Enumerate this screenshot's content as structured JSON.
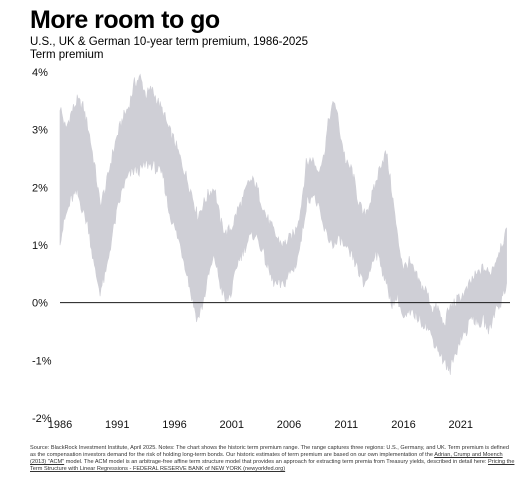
{
  "header": {
    "title": "More room to go",
    "subtitle": "U.S., UK & German 10-year term premium, 1986-2025"
  },
  "chart_data": {
    "type": "area",
    "ylabel": "Term premium",
    "xlim": [
      1986,
      2025.3
    ],
    "ylim": [
      -2,
      4
    ],
    "x_ticks": [
      1986,
      1991,
      1996,
      2001,
      2006,
      2011,
      2016,
      2021
    ],
    "y_ticks": [
      {
        "value": 4,
        "label": "4%"
      },
      {
        "value": 3,
        "label": "3%"
      },
      {
        "value": 2,
        "label": "2%"
      },
      {
        "value": 1,
        "label": "1%"
      },
      {
        "value": 0,
        "label": "0%"
      },
      {
        "value": -1,
        "label": "-1%"
      },
      {
        "value": -2,
        "label": "-2%"
      }
    ],
    "series": [
      {
        "color": "#cfcfd6",
        "x": [
          1986,
          1986.5,
          1987,
          1987.5,
          1988,
          1988.5,
          1989,
          1989.5,
          1990,
          1990.5,
          1991,
          1991.5,
          1992,
          1992.5,
          1993,
          1993.5,
          1994,
          1994.5,
          1995,
          1995.5,
          1996,
          1996.5,
          1997,
          1997.5,
          1998,
          1998.5,
          1999,
          1999.5,
          2000,
          2000.5,
          2001,
          2001.5,
          2002,
          2002.5,
          2003,
          2003.5,
          2004,
          2004.5,
          2005,
          2005.5,
          2006,
          2006.5,
          2007,
          2007.5,
          2008,
          2008.5,
          2009,
          2009.5,
          2010,
          2010.5,
          2011,
          2011.5,
          2012,
          2012.5,
          2013,
          2013.5,
          2014,
          2014.5,
          2015,
          2015.5,
          2016,
          2016.5,
          2017,
          2017.5,
          2018,
          2018.5,
          2019,
          2019.5,
          2020,
          2020.5,
          2021,
          2021.5,
          2022,
          2022.5,
          2023,
          2023.5,
          2024,
          2024.5,
          2025
        ],
        "low": [
          1.1,
          1.5,
          1.8,
          1.9,
          1.6,
          1.3,
          0.6,
          0.2,
          0.5,
          1.1,
          1.6,
          2.0,
          2.2,
          2.3,
          2.3,
          2.4,
          2.4,
          2.3,
          2.2,
          1.6,
          1.3,
          1.0,
          0.6,
          0.1,
          -0.3,
          0.0,
          0.5,
          0.8,
          0.3,
          0.0,
          0.2,
          0.7,
          0.9,
          1.1,
          1.2,
          1.0,
          0.7,
          0.4,
          0.3,
          0.3,
          0.5,
          0.6,
          1.0,
          1.7,
          1.9,
          1.7,
          1.3,
          1.1,
          1.0,
          1.1,
          0.9,
          0.8,
          0.6,
          0.3,
          0.5,
          0.9,
          0.7,
          0.3,
          0.0,
          0.1,
          -0.3,
          -0.2,
          -0.2,
          -0.3,
          -0.4,
          -0.6,
          -0.8,
          -1.0,
          -1.2,
          -0.9,
          -0.6,
          -0.5,
          -0.2,
          -0.4,
          -0.3,
          -0.5,
          -0.1,
          0.0,
          0.3
        ],
        "high": [
          3.4,
          3.0,
          3.3,
          3.5,
          3.4,
          3.0,
          2.4,
          1.7,
          2.0,
          2.5,
          2.9,
          3.2,
          3.4,
          3.8,
          3.9,
          3.6,
          3.7,
          3.5,
          3.3,
          3.0,
          2.8,
          2.5,
          2.2,
          1.9,
          1.5,
          1.7,
          1.9,
          2.0,
          1.4,
          1.2,
          1.3,
          1.6,
          1.8,
          2.1,
          2.1,
          1.8,
          1.5,
          1.3,
          1.1,
          1.0,
          1.1,
          1.2,
          1.6,
          2.4,
          2.5,
          2.3,
          2.5,
          3.2,
          3.5,
          2.9,
          2.4,
          2.3,
          1.8,
          1.5,
          1.7,
          2.0,
          2.4,
          2.6,
          1.9,
          1.1,
          0.6,
          0.7,
          0.5,
          0.3,
          0.2,
          -0.1,
          -0.1,
          -0.4,
          -0.1,
          0.0,
          0.1,
          0.2,
          0.4,
          0.5,
          0.6,
          0.5,
          0.7,
          1.0,
          1.2
        ]
      }
    ],
    "grid": false,
    "legend": "none"
  },
  "source": {
    "text": "Source: BlackRock Investment Institute, April 2025. Notes: The chart shows the historic term premium range. The range captures three regions: U.S., Germany, and UK. Term premium is defined as the compensation investors demand for the risk of holding long-term bonds. Our historic estimates of term premium are based on our own implementation of the",
    "link1": "Adrian, Crump and Moench (2013) \"ACM\"",
    "text2": " model. The ACM model is an arbitrage-free affine term structure model that provides an approach for extracting term premia from Treasury yields, described in detail here: ",
    "link2": "Pricing the Term Structure with Linear Regressions - FEDERAL RESERVE BANK of NEW YORK (newyorkfed.org)"
  }
}
